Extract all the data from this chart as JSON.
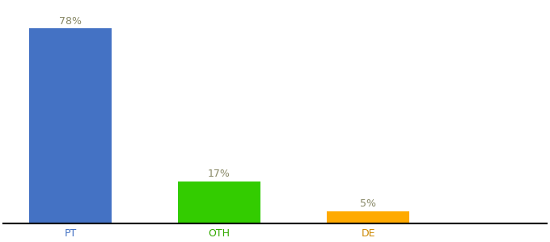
{
  "categories": [
    "PT",
    "OTH",
    "DE"
  ],
  "values": [
    78,
    17,
    5
  ],
  "bar_colors": [
    "#4472c4",
    "#33cc00",
    "#ffaa00"
  ],
  "tick_label_colors": [
    "#4472c4",
    "#33aa00",
    "#cc8800"
  ],
  "labels": [
    "78%",
    "17%",
    "5%"
  ],
  "label_color": "#888866",
  "ylim": [
    0,
    88
  ],
  "background_color": "#ffffff",
  "axis_line_color": "#000000",
  "bar_width": 0.55,
  "label_fontsize": 9,
  "tick_fontsize": 9,
  "x_positions": [
    0,
    1,
    2
  ],
  "xlim": [
    -0.45,
    3.2
  ]
}
